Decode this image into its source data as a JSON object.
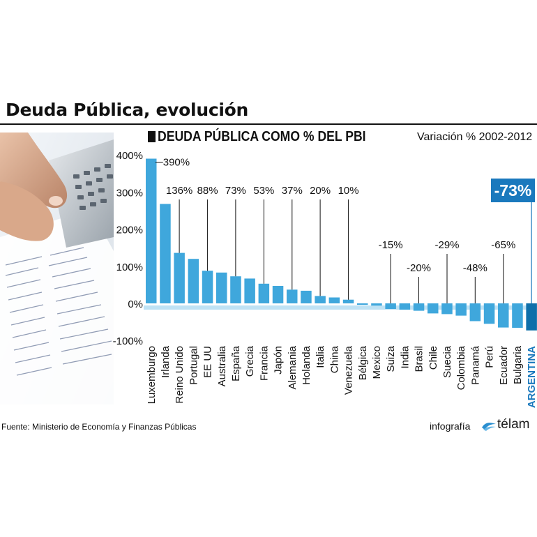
{
  "header": {
    "title": "Deuda Pública, evolución"
  },
  "chart_data": {
    "type": "bar",
    "title": "DEUDA PÚBLICA COMO % DEL PBI",
    "subtitle": "Variación % 2002-2012",
    "ylim": [
      -100,
      400
    ],
    "yticks": [
      400,
      300,
      200,
      100,
      0,
      -100
    ],
    "ytick_labels": [
      "400%",
      "300%",
      "200%",
      "100%",
      "0%",
      "-100%"
    ],
    "categories": [
      "Luxemburgo",
      "Irlanda",
      "Reino Unido",
      "Portugal",
      "EE UU",
      "Australia",
      "España",
      "Grecia",
      "Francia",
      "Japón",
      "Alemania",
      "Holanda",
      "Italia",
      "China",
      "Venezuela",
      "Bélgica",
      "Mexico",
      "Suiza",
      "India",
      "Brasil",
      "Chile",
      "Suecia",
      "Colombia",
      "Panamá",
      "Perú",
      "Ecuador",
      "Bulgaria",
      "ARGENTINA"
    ],
    "values": [
      390,
      268,
      136,
      120,
      88,
      83,
      73,
      67,
      53,
      47,
      37,
      34,
      20,
      16,
      10,
      -4,
      -6,
      -15,
      -17,
      -20,
      -27,
      -29,
      -33,
      -48,
      -55,
      -65,
      -66,
      -73
    ],
    "annotations": [
      {
        "category": "Luxemburgo",
        "label": "390%"
      },
      {
        "category": "Reino Unido",
        "label": "136%"
      },
      {
        "category": "EE UU",
        "label": "88%"
      },
      {
        "category": "España",
        "label": "73%"
      },
      {
        "category": "Francia",
        "label": "53%"
      },
      {
        "category": "Alemania",
        "label": "37%"
      },
      {
        "category": "Italia",
        "label": "20%"
      },
      {
        "category": "Venezuela",
        "label": "10%"
      },
      {
        "category": "Suiza",
        "label": "-15%"
      },
      {
        "category": "Brasil",
        "label": "-20%"
      },
      {
        "category": "Suecia",
        "label": "-29%"
      },
      {
        "category": "Panamá",
        "label": "-48%"
      },
      {
        "category": "Ecuador",
        "label": "-65%"
      }
    ],
    "highlight": {
      "category": "ARGENTINA",
      "label": "-73%"
    },
    "grid": false,
    "colors": {
      "bar": "#3fa7dc",
      "highlight_bar": "#0f6faa",
      "highlight_box": "#1a79bd",
      "highlight_label": "#1a79bd",
      "zero_band": "#bfe2f4"
    }
  },
  "footer": {
    "source": "Fuente: Ministerio de Economía y Finanzas Públicas",
    "credit_prefix": "infografía",
    "credit_brand": "télam",
    "credit_icon": "telam-wave-icon"
  }
}
